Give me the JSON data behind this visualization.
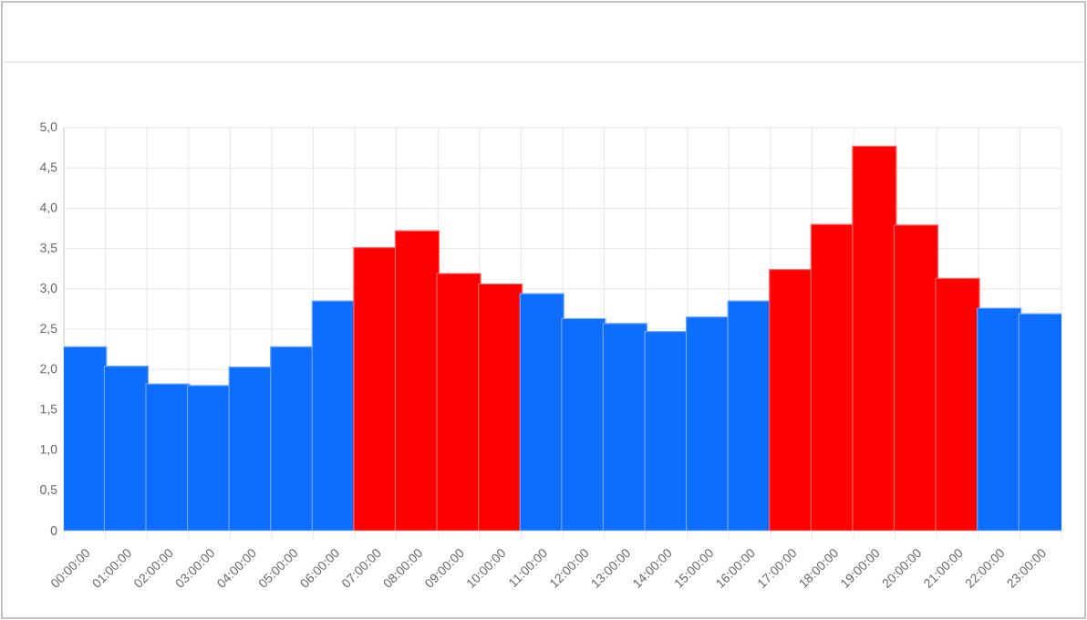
{
  "chart_data": {
    "type": "bar",
    "categories": [
      "00:00:00",
      "01:00:00",
      "02:00:00",
      "03:00:00",
      "04:00:00",
      "05:00:00",
      "06:00:00",
      "07:00:00",
      "08:00:00",
      "09:00:00",
      "10:00:00",
      "11:00:00",
      "12:00:00",
      "13:00:00",
      "14:00:00",
      "15:00:00",
      "16:00:00",
      "17:00:00",
      "18:00:00",
      "19:00:00",
      "20:00:00",
      "21:00:00",
      "22:00:00",
      "23:00:00"
    ],
    "values": [
      2.28,
      2.04,
      1.82,
      1.8,
      2.03,
      2.28,
      2.85,
      3.51,
      3.72,
      3.19,
      3.06,
      2.94,
      2.63,
      2.57,
      2.47,
      2.65,
      2.85,
      3.24,
      3.8,
      4.77,
      3.79,
      3.13,
      2.76,
      2.69
    ],
    "colors": [
      "#0d6efd",
      "#0d6efd",
      "#0d6efd",
      "#0d6efd",
      "#0d6efd",
      "#0d6efd",
      "#0d6efd",
      "#ff0000",
      "#ff0000",
      "#ff0000",
      "#ff0000",
      "#0d6efd",
      "#0d6efd",
      "#0d6efd",
      "#0d6efd",
      "#0d6efd",
      "#0d6efd",
      "#ff0000",
      "#ff0000",
      "#ff0000",
      "#ff0000",
      "#ff0000",
      "#0d6efd",
      "#0d6efd"
    ],
    "ylim": [
      0,
      5
    ],
    "yticks": [
      0,
      {
        "value": 0.5,
        "label": "0,5"
      },
      {
        "value": 1,
        "label": "1,0"
      },
      {
        "value": 1.5,
        "label": "1,5"
      },
      {
        "value": 2,
        "label": "2,0"
      },
      {
        "value": 2.5,
        "label": "2,5"
      },
      {
        "value": 3,
        "label": "3,0"
      },
      {
        "value": 3.5,
        "label": "3,5"
      },
      {
        "value": 4,
        "label": "4,0"
      },
      {
        "value": 4.5,
        "label": "4,5"
      },
      {
        "value": 5,
        "label": "5,0"
      }
    ],
    "grid": true
  }
}
